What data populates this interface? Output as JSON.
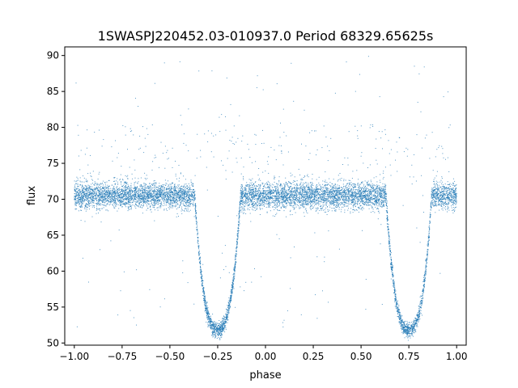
{
  "chart_data": {
    "type": "scatter",
    "title": "1SWASPJ220452.03-010937.0 Period 68329.65625s",
    "xlabel": "phase",
    "ylabel": "flux",
    "xlim": [
      -1.05,
      1.05
    ],
    "ylim": [
      49.7,
      91.2
    ],
    "xticks": [
      -1.0,
      -0.75,
      -0.5,
      -0.25,
      0.0,
      0.25,
      0.5,
      0.75,
      1.0
    ],
    "xtick_labels": [
      "−1.00",
      "−0.75",
      "−0.50",
      "−0.25",
      "0.00",
      "0.25",
      "0.50",
      "0.75",
      "1.00"
    ],
    "yticks": [
      50,
      55,
      60,
      65,
      70,
      75,
      80,
      85,
      90
    ],
    "ytick_labels": [
      "50",
      "55",
      "60",
      "65",
      "70",
      "75",
      "80",
      "85",
      "90"
    ],
    "grid": false,
    "legend": "none",
    "marker_color": "#1f77b4",
    "series": [
      {
        "baseline_flux": 70.5,
        "baseline_scatter": 1.0,
        "eclipses": [
          {
            "center_phase": -0.25,
            "min_flux": 51.8,
            "ingress_phase": -0.37,
            "egress_phase": -0.13
          },
          {
            "center_phase": 0.75,
            "min_flux": 51.8,
            "ingress_phase": 0.63,
            "egress_phase": 0.87
          }
        ],
        "x_range": [
          -1.0,
          1.0
        ],
        "outlier_range": [
          52,
          90
        ]
      }
    ]
  }
}
